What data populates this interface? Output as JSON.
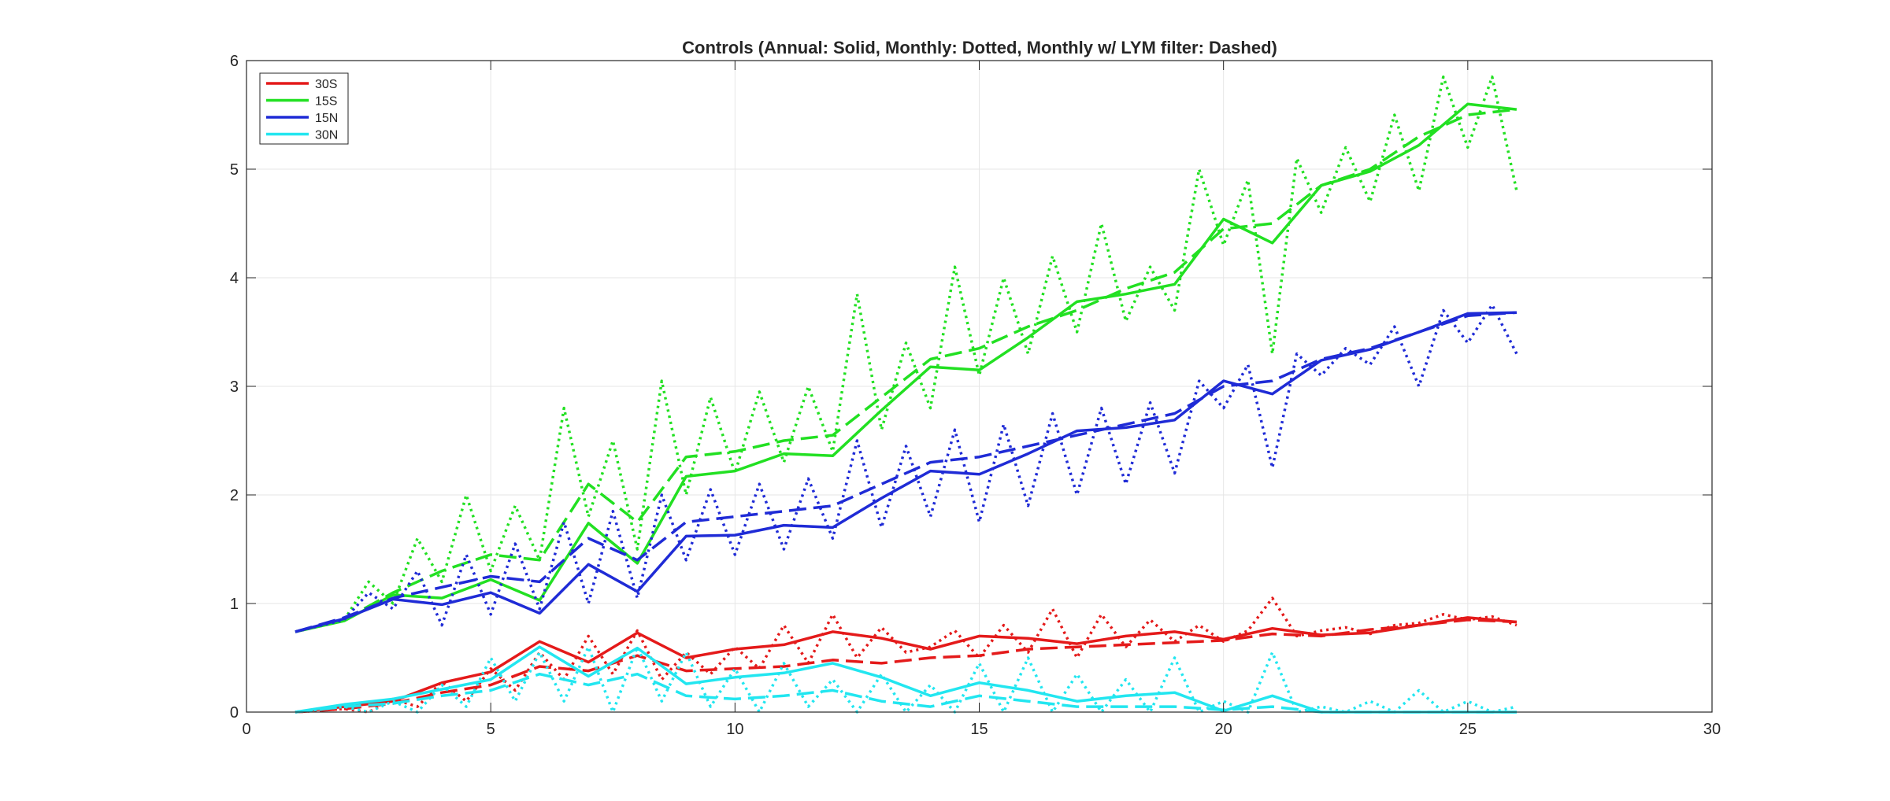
{
  "chart_data": {
    "type": "line",
    "title": "Controls (Annual: Solid, Monthly: Dotted, Monthly w/ LYM filter: Dashed)",
    "xlabel": "",
    "ylabel": "",
    "xlim": [
      0,
      30
    ],
    "ylim": [
      0,
      6
    ],
    "xticks": [
      "0",
      "5",
      "10",
      "15",
      "20",
      "25",
      "30"
    ],
    "yticks": [
      "0",
      "1",
      "2",
      "3",
      "4",
      "5",
      "6"
    ],
    "grid": true,
    "legend_position": "top-left",
    "legend": [
      {
        "name": "30S",
        "color": "#e41a1a"
      },
      {
        "name": "15S",
        "color": "#22e022"
      },
      {
        "name": "15N",
        "color": "#1f2bd6"
      },
      {
        "name": "30N",
        "color": "#22e6f0"
      }
    ],
    "series": [
      {
        "name": "30S",
        "style": "solid",
        "color": "#e41a1a",
        "x": [
          1,
          2,
          3,
          4,
          5,
          6,
          7,
          8,
          9,
          10,
          11,
          12,
          13,
          14,
          15,
          16,
          17,
          18,
          19,
          20,
          21,
          22,
          23,
          24,
          25,
          26
        ],
        "y": [
          0.0,
          0.05,
          0.1,
          0.27,
          0.37,
          0.65,
          0.46,
          0.73,
          0.5,
          0.58,
          0.62,
          0.74,
          0.68,
          0.58,
          0.7,
          0.68,
          0.63,
          0.7,
          0.74,
          0.67,
          0.77,
          0.71,
          0.73,
          0.8,
          0.87,
          0.83
        ]
      },
      {
        "name": "30S",
        "style": "dashed",
        "color": "#e41a1a",
        "x": [
          1,
          2,
          3,
          4,
          5,
          6,
          7,
          8,
          9,
          10,
          11,
          12,
          13,
          14,
          15,
          16,
          17,
          18,
          19,
          20,
          21,
          22,
          23,
          24,
          25,
          26
        ],
        "y": [
          0.0,
          0.03,
          0.08,
          0.18,
          0.25,
          0.42,
          0.38,
          0.52,
          0.38,
          0.4,
          0.42,
          0.48,
          0.45,
          0.5,
          0.52,
          0.58,
          0.6,
          0.62,
          0.64,
          0.66,
          0.72,
          0.7,
          0.76,
          0.8,
          0.85,
          0.83
        ]
      },
      {
        "name": "30S",
        "style": "dotted",
        "color": "#e41a1a",
        "x": [
          1,
          2,
          2.5,
          3,
          3.5,
          4,
          4.5,
          5,
          5.5,
          6,
          6.5,
          7,
          7.5,
          8,
          8.5,
          9,
          9.5,
          10,
          10.5,
          11,
          11.5,
          12,
          12.5,
          13,
          13.5,
          14,
          14.5,
          15,
          15.5,
          16,
          16.5,
          17,
          17.5,
          18,
          18.5,
          19,
          19.5,
          20,
          20.5,
          21,
          21.5,
          22,
          22.5,
          23,
          23.5,
          24,
          24.5,
          25,
          25.5,
          26
        ],
        "y": [
          0.0,
          0.03,
          0.0,
          0.12,
          0.05,
          0.28,
          0.1,
          0.4,
          0.2,
          0.55,
          0.3,
          0.7,
          0.35,
          0.75,
          0.3,
          0.55,
          0.35,
          0.6,
          0.4,
          0.8,
          0.45,
          0.9,
          0.5,
          0.78,
          0.55,
          0.6,
          0.75,
          0.5,
          0.8,
          0.55,
          0.95,
          0.5,
          0.9,
          0.6,
          0.85,
          0.65,
          0.8,
          0.65,
          0.75,
          1.05,
          0.7,
          0.75,
          0.78,
          0.72,
          0.8,
          0.82,
          0.9,
          0.85,
          0.88,
          0.8
        ]
      },
      {
        "name": "15S",
        "style": "solid",
        "color": "#22e022",
        "x": [
          1,
          2,
          3,
          4,
          5,
          6,
          7,
          8,
          9,
          10,
          11,
          12,
          13,
          14,
          15,
          16,
          17,
          18,
          19,
          20,
          21,
          22,
          23,
          24,
          25,
          26
        ],
        "y": [
          0.74,
          0.84,
          1.08,
          1.05,
          1.22,
          1.03,
          1.74,
          1.37,
          2.17,
          2.22,
          2.38,
          2.36,
          2.78,
          3.18,
          3.15,
          3.45,
          3.78,
          3.85,
          3.94,
          4.54,
          4.32,
          4.85,
          4.98,
          5.22,
          5.6,
          5.55
        ]
      },
      {
        "name": "15S",
        "style": "dashed",
        "color": "#22e022",
        "x": [
          1,
          2,
          3,
          4,
          5,
          6,
          7,
          8,
          9,
          10,
          11,
          12,
          13,
          14,
          15,
          16,
          17,
          18,
          19,
          20,
          21,
          22,
          23,
          24,
          25,
          26
        ],
        "y": [
          0.74,
          0.85,
          1.1,
          1.3,
          1.45,
          1.4,
          2.1,
          1.75,
          2.35,
          2.4,
          2.5,
          2.55,
          2.9,
          3.25,
          3.35,
          3.55,
          3.7,
          3.9,
          4.05,
          4.45,
          4.5,
          4.85,
          5.0,
          5.3,
          5.5,
          5.55
        ]
      },
      {
        "name": "15S",
        "style": "dotted",
        "color": "#22e022",
        "x": [
          1,
          2,
          2.5,
          3,
          3.5,
          4,
          4.5,
          5,
          5.5,
          6,
          6.5,
          7,
          7.5,
          8,
          8.5,
          9,
          9.5,
          10,
          10.5,
          11,
          11.5,
          12,
          12.5,
          13,
          13.5,
          14,
          14.5,
          15,
          15.5,
          16,
          16.5,
          17,
          17.5,
          18,
          18.5,
          19,
          19.5,
          20,
          20.5,
          21,
          21.5,
          22,
          22.5,
          23,
          23.5,
          24,
          24.5,
          25,
          25.5,
          26
        ],
        "y": [
          0.74,
          0.85,
          1.2,
          1.0,
          1.6,
          1.2,
          2.0,
          1.3,
          1.9,
          1.4,
          2.8,
          1.8,
          2.5,
          1.5,
          3.05,
          2.0,
          2.9,
          2.2,
          2.95,
          2.3,
          3.0,
          2.4,
          3.85,
          2.6,
          3.4,
          2.8,
          4.1,
          3.1,
          4.0,
          3.3,
          4.2,
          3.5,
          4.5,
          3.6,
          4.1,
          3.7,
          5.0,
          4.3,
          4.9,
          3.3,
          5.1,
          4.6,
          5.2,
          4.7,
          5.5,
          4.8,
          5.85,
          5.2,
          5.85,
          4.8
        ]
      },
      {
        "name": "15N",
        "style": "solid",
        "color": "#1f2bd6",
        "x": [
          1,
          2,
          3,
          4,
          5,
          6,
          7,
          8,
          9,
          10,
          11,
          12,
          13,
          14,
          15,
          16,
          17,
          18,
          19,
          20,
          21,
          22,
          23,
          24,
          25,
          26
        ],
        "y": [
          0.74,
          0.86,
          1.04,
          0.99,
          1.1,
          0.91,
          1.36,
          1.11,
          1.62,
          1.63,
          1.72,
          1.7,
          1.97,
          2.22,
          2.19,
          2.38,
          2.59,
          2.62,
          2.69,
          3.05,
          2.93,
          3.24,
          3.34,
          3.5,
          3.67,
          3.68
        ]
      },
      {
        "name": "15N",
        "style": "dashed",
        "color": "#1f2bd6",
        "x": [
          1,
          2,
          3,
          4,
          5,
          6,
          7,
          8,
          9,
          10,
          11,
          12,
          13,
          14,
          15,
          16,
          17,
          18,
          19,
          20,
          21,
          22,
          23,
          24,
          25,
          26
        ],
        "y": [
          0.74,
          0.87,
          1.05,
          1.15,
          1.25,
          1.2,
          1.6,
          1.4,
          1.75,
          1.8,
          1.85,
          1.9,
          2.1,
          2.3,
          2.35,
          2.45,
          2.55,
          2.65,
          2.75,
          3.0,
          3.05,
          3.25,
          3.35,
          3.5,
          3.65,
          3.68
        ]
      },
      {
        "name": "15N",
        "style": "dotted",
        "color": "#1f2bd6",
        "x": [
          1,
          2,
          2.5,
          3,
          3.5,
          4,
          4.5,
          5,
          5.5,
          6,
          6.5,
          7,
          7.5,
          8,
          8.5,
          9,
          9.5,
          10,
          10.5,
          11,
          11.5,
          12,
          12.5,
          13,
          13.5,
          14,
          14.5,
          15,
          15.5,
          16,
          16.5,
          17,
          17.5,
          18,
          18.5,
          19,
          19.5,
          20,
          20.5,
          21,
          21.5,
          22,
          22.5,
          23,
          23.5,
          24,
          24.5,
          25,
          25.5,
          26
        ],
        "y": [
          0.74,
          0.85,
          1.1,
          0.95,
          1.3,
          0.8,
          1.45,
          0.9,
          1.55,
          0.95,
          1.75,
          1.0,
          1.85,
          1.05,
          2.0,
          1.4,
          2.05,
          1.45,
          2.1,
          1.5,
          2.15,
          1.6,
          2.5,
          1.7,
          2.45,
          1.8,
          2.6,
          1.75,
          2.65,
          1.9,
          2.75,
          2.0,
          2.8,
          2.1,
          2.85,
          2.2,
          3.05,
          2.8,
          3.2,
          2.25,
          3.3,
          3.1,
          3.35,
          3.2,
          3.55,
          3.0,
          3.7,
          3.4,
          3.75,
          3.3
        ]
      },
      {
        "name": "30N",
        "style": "solid",
        "color": "#22e6f0",
        "x": [
          1,
          2,
          3,
          4,
          5,
          6,
          7,
          8,
          9,
          10,
          11,
          12,
          13,
          14,
          15,
          16,
          17,
          18,
          19,
          20,
          21,
          22,
          23,
          24,
          25,
          26
        ],
        "y": [
          0.0,
          0.07,
          0.12,
          0.21,
          0.3,
          0.6,
          0.33,
          0.59,
          0.26,
          0.32,
          0.36,
          0.45,
          0.32,
          0.15,
          0.27,
          0.2,
          0.1,
          0.15,
          0.18,
          0.01,
          0.15,
          0.0,
          0.0,
          0.0,
          0.0,
          0.0
        ]
      },
      {
        "name": "30N",
        "style": "dashed",
        "color": "#22e6f0",
        "x": [
          1,
          2,
          3,
          4,
          5,
          6,
          7,
          8,
          9,
          10,
          11,
          12,
          13,
          14,
          15,
          16,
          17,
          18,
          19,
          20,
          21,
          22,
          23,
          24,
          25,
          26
        ],
        "y": [
          0.0,
          0.05,
          0.08,
          0.15,
          0.2,
          0.35,
          0.25,
          0.35,
          0.15,
          0.12,
          0.15,
          0.2,
          0.1,
          0.05,
          0.15,
          0.1,
          0.05,
          0.05,
          0.05,
          0.02,
          0.05,
          0.0,
          0.0,
          0.0,
          0.0,
          0.0
        ]
      },
      {
        "name": "30N",
        "style": "dotted",
        "color": "#22e6f0",
        "x": [
          1,
          2,
          2.5,
          3,
          3.5,
          4,
          4.5,
          5,
          5.5,
          6,
          6.5,
          7,
          7.5,
          8,
          8.5,
          9,
          9.5,
          10,
          10.5,
          11,
          11.5,
          12,
          12.5,
          13,
          13.5,
          14,
          14.5,
          15,
          15.5,
          16,
          16.5,
          17,
          17.5,
          18,
          18.5,
          19,
          19.5,
          20,
          20.5,
          21,
          21.5,
          22,
          22.5,
          23,
          23.5,
          24,
          24.5,
          25,
          25.5,
          26
        ],
        "y": [
          0.0,
          0.05,
          0.0,
          0.1,
          0.0,
          0.25,
          0.05,
          0.5,
          0.1,
          0.55,
          0.1,
          0.6,
          0.0,
          0.6,
          0.1,
          0.55,
          0.05,
          0.4,
          0.0,
          0.45,
          0.05,
          0.3,
          0.0,
          0.35,
          0.0,
          0.25,
          0.0,
          0.45,
          0.0,
          0.5,
          0.0,
          0.35,
          0.0,
          0.3,
          0.0,
          0.5,
          0.0,
          0.1,
          0.0,
          0.55,
          0.0,
          0.05,
          0.0,
          0.1,
          0.0,
          0.2,
          0.0,
          0.1,
          0.0,
          0.05
        ]
      }
    ]
  }
}
